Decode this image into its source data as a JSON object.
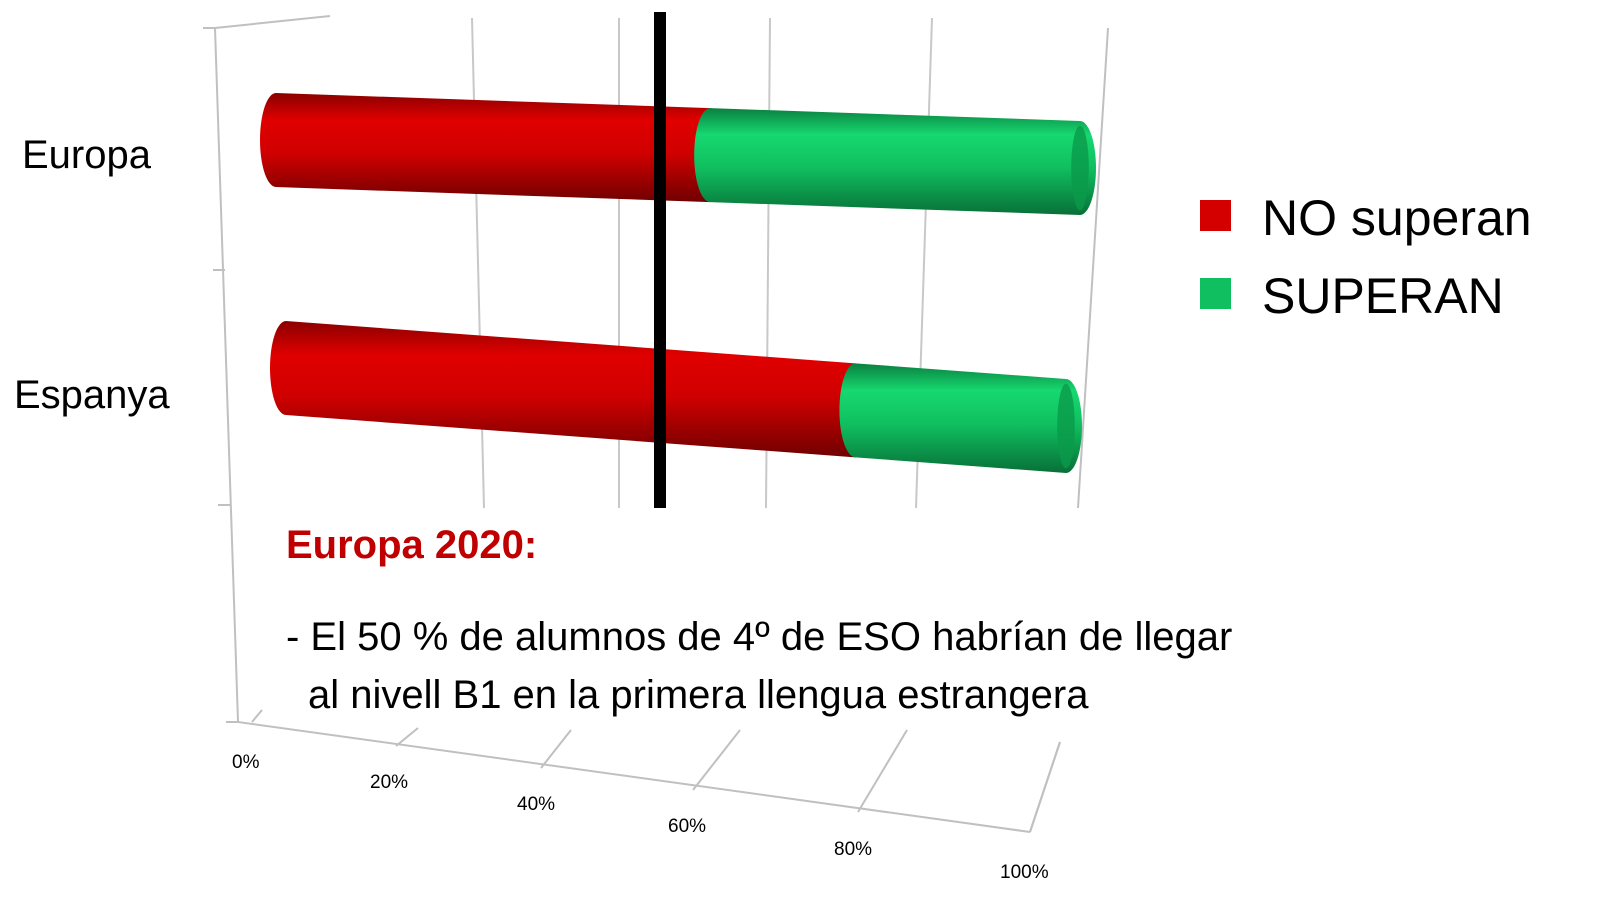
{
  "chart_data": {
    "type": "bar",
    "orientation": "horizontal",
    "stacked": "percent",
    "style": "3d-cylinder",
    "categories": [
      "Europa",
      "Espanya"
    ],
    "series": [
      {
        "name": "NO superan",
        "color": "#d40000",
        "values": [
          54,
          73
        ]
      },
      {
        "name": "SUPERAN",
        "color": "#10c060",
        "values": [
          46,
          27
        ]
      }
    ],
    "x_ticks": [
      "0%",
      "20%",
      "40%",
      "60%",
      "80%",
      "100%"
    ],
    "xlim": [
      0,
      100
    ],
    "reference_line": {
      "value": 50,
      "color": "#000000"
    },
    "grid": true,
    "legend": "right"
  },
  "annotation": {
    "title": "Europa 2020:",
    "line1": "- El 50 % de alumnos de 4º de ESO habrían de llegar",
    "line2": "al nivell B1 en la primera llengua estrangera"
  }
}
